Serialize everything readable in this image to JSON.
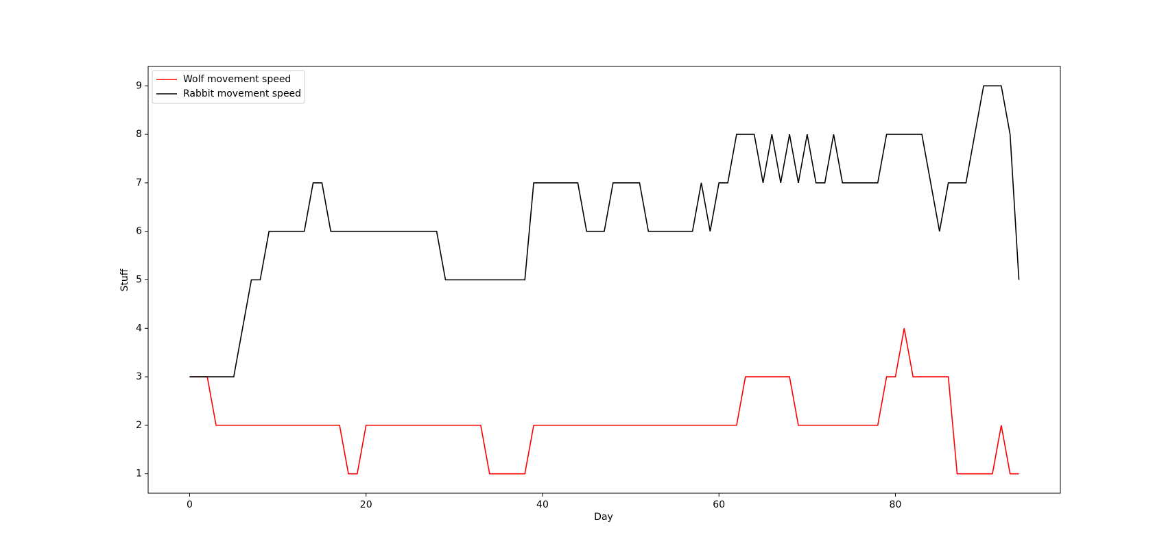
{
  "chart_data": {
    "type": "line",
    "xlabel": "Day",
    "ylabel": "Stuff",
    "x": [
      0,
      1,
      2,
      3,
      4,
      5,
      6,
      7,
      8,
      9,
      10,
      11,
      12,
      13,
      14,
      15,
      16,
      17,
      18,
      19,
      20,
      21,
      22,
      23,
      24,
      25,
      26,
      27,
      28,
      29,
      30,
      31,
      32,
      33,
      34,
      35,
      36,
      37,
      38,
      39,
      40,
      41,
      42,
      43,
      44,
      45,
      46,
      47,
      48,
      49,
      50,
      51,
      52,
      53,
      54,
      55,
      56,
      57,
      58,
      59,
      60,
      61,
      62,
      63,
      64,
      65,
      66,
      67,
      68,
      69,
      70,
      71,
      72,
      73,
      74,
      75,
      76,
      77,
      78,
      79,
      80,
      81,
      82,
      83,
      84,
      85,
      86,
      87,
      88,
      89,
      90,
      91,
      92,
      93,
      94
    ],
    "series": [
      {
        "name": "Wolf movement speed",
        "color": "#ff0000",
        "values": [
          3,
          3,
          3,
          2,
          2,
          2,
          2,
          2,
          2,
          2,
          2,
          2,
          2,
          2,
          2,
          2,
          2,
          2,
          1,
          1,
          2,
          2,
          2,
          2,
          2,
          2,
          2,
          2,
          2,
          2,
          2,
          2,
          2,
          2,
          1,
          1,
          1,
          1,
          1,
          2,
          2,
          2,
          2,
          2,
          2,
          2,
          2,
          2,
          2,
          2,
          2,
          2,
          2,
          2,
          2,
          2,
          2,
          2,
          2,
          2,
          2,
          2,
          2,
          3,
          3,
          3,
          3,
          3,
          3,
          2,
          2,
          2,
          2,
          2,
          2,
          2,
          2,
          2,
          2,
          3,
          3,
          4,
          3,
          3,
          3,
          3,
          3,
          1,
          1,
          1,
          1,
          1,
          2,
          1,
          1
        ]
      },
      {
        "name": "Rabbit movement speed",
        "color": "#000000",
        "values": [
          3,
          3,
          3,
          3,
          3,
          3,
          4,
          5,
          5,
          6,
          6,
          6,
          6,
          6,
          7,
          7,
          6,
          6,
          6,
          6,
          6,
          6,
          6,
          6,
          6,
          6,
          6,
          6,
          6,
          5,
          5,
          5,
          5,
          5,
          5,
          5,
          5,
          5,
          5,
          7,
          7,
          7,
          7,
          7,
          7,
          6,
          6,
          6,
          7,
          7,
          7,
          7,
          6,
          6,
          6,
          6,
          6,
          6,
          7,
          6,
          7,
          7,
          8,
          8,
          8,
          7,
          8,
          7,
          8,
          7,
          8,
          7,
          7,
          8,
          7,
          7,
          7,
          7,
          7,
          8,
          8,
          8,
          8,
          8,
          7,
          6,
          7,
          7,
          7,
          8,
          9,
          9,
          9,
          8,
          5
        ]
      }
    ],
    "xlim": [
      -4.7,
      98.7
    ],
    "ylim": [
      0.6,
      9.4
    ],
    "xticks": [
      0,
      20,
      40,
      60,
      80
    ],
    "yticks": [
      1,
      2,
      3,
      4,
      5,
      6,
      7,
      8,
      9
    ],
    "legend": "upper left"
  }
}
